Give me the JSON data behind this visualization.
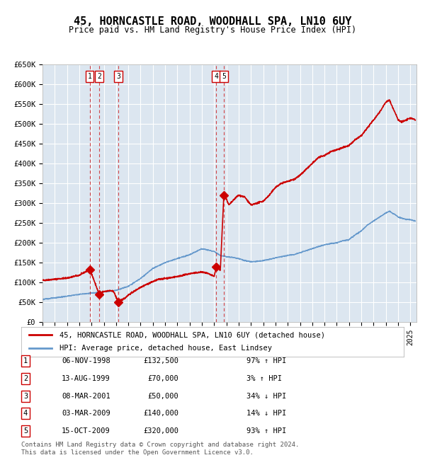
{
  "title": "45, HORNCASTLE ROAD, WOODHALL SPA, LN10 6UY",
  "subtitle": "Price paid vs. HM Land Registry's House Price Index (HPI)",
  "sale_dates_num": [
    1998.846,
    1999.617,
    2001.183,
    2009.17,
    2009.79
  ],
  "sale_prices": [
    132500,
    70000,
    50000,
    140000,
    320000
  ],
  "sale_labels": [
    "1",
    "2",
    "3",
    "4",
    "5"
  ],
  "red_line_color": "#cc0000",
  "blue_line_color": "#6699cc",
  "background_color": "#dce6f0",
  "plot_bg_color": "#dce6f0",
  "ylim": [
    0,
    650000
  ],
  "yticks": [
    0,
    50000,
    100000,
    150000,
    200000,
    250000,
    300000,
    350000,
    400000,
    450000,
    500000,
    550000,
    600000,
    650000
  ],
  "ytick_labels": [
    "£0",
    "£50K",
    "£100K",
    "£150K",
    "£200K",
    "£250K",
    "£300K",
    "£350K",
    "£400K",
    "£450K",
    "£500K",
    "£550K",
    "£600K",
    "£650K"
  ],
  "xlim_start": 1995.0,
  "xlim_end": 2025.5,
  "legend_line1": "45, HORNCASTLE ROAD, WOODHALL SPA, LN10 6UY (detached house)",
  "legend_line2": "HPI: Average price, detached house, East Lindsey",
  "table_rows": [
    [
      "1",
      "06-NOV-1998",
      "£132,500",
      "97% ↑ HPI"
    ],
    [
      "2",
      "13-AUG-1999",
      "£70,000",
      "3% ↑ HPI"
    ],
    [
      "3",
      "08-MAR-2001",
      "£50,000",
      "34% ↓ HPI"
    ],
    [
      "4",
      "03-MAR-2009",
      "£140,000",
      "14% ↓ HPI"
    ],
    [
      "5",
      "15-OCT-2009",
      "£320,000",
      "93% ↑ HPI"
    ]
  ],
  "footer": "Contains HM Land Registry data © Crown copyright and database right 2024.\nThis data is licensed under the Open Government Licence v3.0."
}
